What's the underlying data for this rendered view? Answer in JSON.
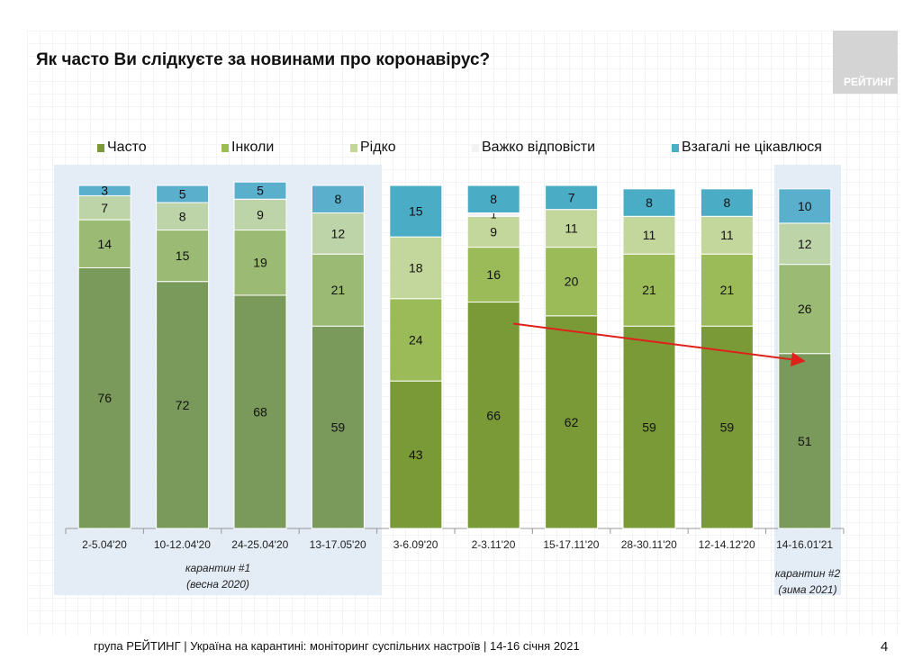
{
  "title": "Як часто Ви слідкуєте за новинами про коронавірус?",
  "logo_text": "РЕЙТИНГ",
  "footer": "група РЕЙТИНГ | Україна на карантині: моніторинг суспільних настроїв | 14-16 січня 2021",
  "page_number": "4",
  "notes": {
    "q1_line1": "карантин #1",
    "q1_line2": "(весна 2020)",
    "q2_line1": "карантин #2",
    "q2_line2": "(зима 2021)"
  },
  "colors": {
    "often": "#7a9a38",
    "sometimes": "#9bbb59",
    "rarely": "#c3d69b",
    "hard": "#f2f2f2",
    "not_interested": "#4bacc6",
    "often_muted": "#7a9a5b",
    "sometimes_muted": "#9bbb74",
    "rarely_muted": "#bdd3a8",
    "not_interested_muted": "#5aafcc",
    "arrow": "#e0201b"
  },
  "chart_data": {
    "type": "bar",
    "stacked": true,
    "title": "Як часто Ви слідкуєте за новинами про коронавірус?",
    "xlabel": "",
    "ylabel": "",
    "ylim": [
      0,
      100
    ],
    "legend_position": "top",
    "categories": [
      "2-5.04'20",
      "10-12.04'20",
      "24-25.04'20",
      "13-17.05'20",
      "3-6.09'20",
      "2-3.11'20",
      "15-17.11'20",
      "28-30.11'20",
      "12-14.12'20",
      "14-16.01'21"
    ],
    "highlighted": [
      true,
      true,
      true,
      true,
      false,
      false,
      false,
      false,
      false,
      true
    ],
    "series": [
      {
        "name": "Часто",
        "key": "often",
        "values": [
          76,
          72,
          68,
          59,
          43,
          66,
          62,
          59,
          59,
          51
        ]
      },
      {
        "name": "Інколи",
        "key": "sometimes",
        "values": [
          14,
          15,
          19,
          21,
          24,
          16,
          20,
          21,
          21,
          26
        ]
      },
      {
        "name": "Рідко",
        "key": "rarely",
        "values": [
          7,
          8,
          9,
          12,
          18,
          9,
          11,
          11,
          11,
          12
        ]
      },
      {
        "name": "Важко відповісти",
        "key": "hard",
        "values": [
          null,
          null,
          null,
          null,
          null,
          1,
          null,
          null,
          null,
          null
        ]
      },
      {
        "name": "Взагалі не цікавлюся",
        "key": "not_interested",
        "values": [
          3,
          5,
          5,
          8,
          15,
          8,
          7,
          8,
          8,
          10
        ]
      }
    ],
    "annotations": [
      {
        "type": "arrow",
        "from_category": "2-3.11'20",
        "to_category": "14-16.01'21",
        "series": "Часто"
      }
    ]
  }
}
